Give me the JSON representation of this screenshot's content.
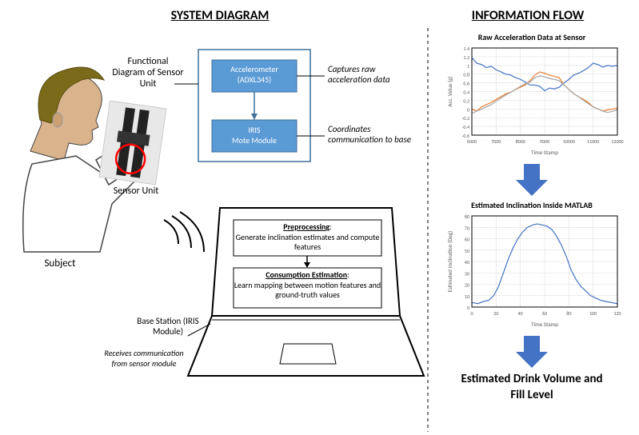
{
  "headings": {
    "system": "SYSTEM DIAGRAM",
    "info": "INFORMATION FLOW"
  },
  "labels": {
    "functional": "Functional Diagram of Sensor Unit",
    "sensorUnit": "Sensor Unit",
    "subject": "Subject",
    "accel": "Accelerometer (ADXL345)",
    "iris": "IRIS\nMote Module",
    "captures": "Captures raw acceleration data",
    "coordinates": "Coordinates communication to base",
    "preprocTitle": "Preprocessing",
    "preprocBody": "Generate inclination estimates and compute features",
    "consTitle": "Consumption Estimation",
    "consBody": "Learn mapping between motion features and ground-truth values",
    "base": "Base Station (IRIS Module)",
    "receives": "Receives communication from sensor module",
    "rawTitle": "Raw Acceleration Data at Sensor",
    "inclTitle": "Estimated Inclination Inside MATLAB",
    "final": "Estimated Drink Volume and Fill Level"
  },
  "colors": {
    "blueBox": "#5b9bd5",
    "blueBorder": "#41719c",
    "textOnBlue": "#ffffff",
    "screenBorder": "#000000",
    "arrowBlue": "#4472c4",
    "hair": "#7a6a1a",
    "skin": "#d9b38c",
    "series1": "#4472c4",
    "series2": "#ed7d31",
    "series3": "#a5a5a5",
    "axis": "#595959",
    "grid": "#d9d9d9",
    "plotBorder": "#000000",
    "red": "#ff0000"
  },
  "chart1": {
    "title": "Raw Acceleration Data at Sensor",
    "xlabel": "Time Stamp",
    "ylabel": "Acc. Value (g)",
    "xlim": [
      6000,
      12000
    ],
    "ylim": [
      -0.6,
      1.4
    ],
    "xticks": [
      6000,
      7000,
      8000,
      9000,
      10000,
      11000,
      12000
    ],
    "yticks": [
      -0.6,
      -0.4,
      -0.2,
      0,
      0.2,
      0.4,
      0.6,
      0.8,
      1,
      1.2,
      1.4
    ],
    "series": [
      {
        "name": "x",
        "color": "#4472c4",
        "data": [
          [
            6000,
            1.18
          ],
          [
            6200,
            1.05
          ],
          [
            6400,
            1.02
          ],
          [
            6600,
            0.95
          ],
          [
            6800,
            0.98
          ],
          [
            7000,
            0.9
          ],
          [
            7200,
            0.85
          ],
          [
            7400,
            0.8
          ],
          [
            7600,
            0.78
          ],
          [
            7800,
            0.72
          ],
          [
            8000,
            0.68
          ],
          [
            8200,
            0.62
          ],
          [
            8400,
            0.55
          ],
          [
            8600,
            0.55
          ],
          [
            8800,
            0.52
          ],
          [
            9000,
            0.42
          ],
          [
            9200,
            0.48
          ],
          [
            9400,
            0.46
          ],
          [
            9600,
            0.5
          ],
          [
            9800,
            0.6
          ],
          [
            10000,
            0.68
          ],
          [
            10200,
            0.78
          ],
          [
            10400,
            0.82
          ],
          [
            10600,
            0.88
          ],
          [
            10800,
            0.95
          ],
          [
            11000,
            1.05
          ],
          [
            11200,
            1.02
          ],
          [
            11400,
            0.96
          ],
          [
            11600,
            1.0
          ],
          [
            11800,
            0.98
          ],
          [
            12000,
            1.0
          ]
        ]
      },
      {
        "name": "y",
        "color": "#ed7d31",
        "data": [
          [
            6000,
            0.0
          ],
          [
            6200,
            -0.05
          ],
          [
            6400,
            0.05
          ],
          [
            6600,
            0.1
          ],
          [
            6800,
            0.15
          ],
          [
            7000,
            0.22
          ],
          [
            7200,
            0.28
          ],
          [
            7400,
            0.35
          ],
          [
            7600,
            0.38
          ],
          [
            7800,
            0.45
          ],
          [
            8000,
            0.5
          ],
          [
            8200,
            0.55
          ],
          [
            8400,
            0.65
          ],
          [
            8600,
            0.78
          ],
          [
            8800,
            0.85
          ],
          [
            9000,
            0.82
          ],
          [
            9200,
            0.78
          ],
          [
            9400,
            0.75
          ],
          [
            9600,
            0.72
          ],
          [
            9800,
            0.55
          ],
          [
            10000,
            0.45
          ],
          [
            10200,
            0.35
          ],
          [
            10400,
            0.28
          ],
          [
            10600,
            0.22
          ],
          [
            10800,
            0.15
          ],
          [
            11000,
            0.05
          ],
          [
            11200,
            0.0
          ],
          [
            11400,
            -0.05
          ],
          [
            11600,
            -0.02
          ],
          [
            11800,
            0.0
          ],
          [
            12000,
            0.02
          ]
        ]
      },
      {
        "name": "z",
        "color": "#a5a5a5",
        "data": [
          [
            6000,
            -0.1
          ],
          [
            6200,
            -0.05
          ],
          [
            6400,
            0.0
          ],
          [
            6600,
            0.05
          ],
          [
            6800,
            0.1
          ],
          [
            7000,
            0.18
          ],
          [
            7200,
            0.25
          ],
          [
            7400,
            0.32
          ],
          [
            7600,
            0.38
          ],
          [
            7800,
            0.45
          ],
          [
            8000,
            0.52
          ],
          [
            8200,
            0.58
          ],
          [
            8400,
            0.62
          ],
          [
            8600,
            0.72
          ],
          [
            8800,
            0.76
          ],
          [
            9000,
            0.74
          ],
          [
            9200,
            0.7
          ],
          [
            9400,
            0.68
          ],
          [
            9600,
            0.65
          ],
          [
            9800,
            0.55
          ],
          [
            10000,
            0.45
          ],
          [
            10200,
            0.35
          ],
          [
            10400,
            0.28
          ],
          [
            10600,
            0.2
          ],
          [
            10800,
            0.12
          ],
          [
            11000,
            0.05
          ],
          [
            11200,
            0.0
          ],
          [
            11400,
            -0.05
          ],
          [
            11600,
            -0.08
          ],
          [
            11800,
            -0.05
          ],
          [
            12000,
            -0.02
          ]
        ]
      }
    ]
  },
  "chart2": {
    "title": "Estimated Inclination Inside MATLAB",
    "xlabel": "Time Stamp",
    "ylabel": "Estimated Inclination (Deg)",
    "xlim": [
      0,
      120
    ],
    "ylim": [
      0,
      80
    ],
    "xticks": [
      0,
      20,
      40,
      60,
      80,
      100,
      120
    ],
    "yticks": [
      0,
      10,
      20,
      30,
      40,
      50,
      60,
      70,
      80
    ],
    "series": [
      {
        "name": "inclination",
        "color": "#4472c4",
        "data": [
          [
            0,
            4
          ],
          [
            5,
            3
          ],
          [
            10,
            5
          ],
          [
            14,
            6
          ],
          [
            18,
            10
          ],
          [
            22,
            18
          ],
          [
            26,
            30
          ],
          [
            30,
            42
          ],
          [
            34,
            52
          ],
          [
            38,
            60
          ],
          [
            42,
            66
          ],
          [
            46,
            70
          ],
          [
            50,
            72
          ],
          [
            54,
            73
          ],
          [
            58,
            72
          ],
          [
            62,
            71
          ],
          [
            66,
            68
          ],
          [
            70,
            62
          ],
          [
            74,
            54
          ],
          [
            78,
            44
          ],
          [
            82,
            32
          ],
          [
            86,
            24
          ],
          [
            90,
            18
          ],
          [
            94,
            14
          ],
          [
            98,
            10
          ],
          [
            102,
            8
          ],
          [
            106,
            6
          ],
          [
            110,
            5
          ],
          [
            115,
            4
          ],
          [
            120,
            3
          ]
        ]
      }
    ]
  }
}
